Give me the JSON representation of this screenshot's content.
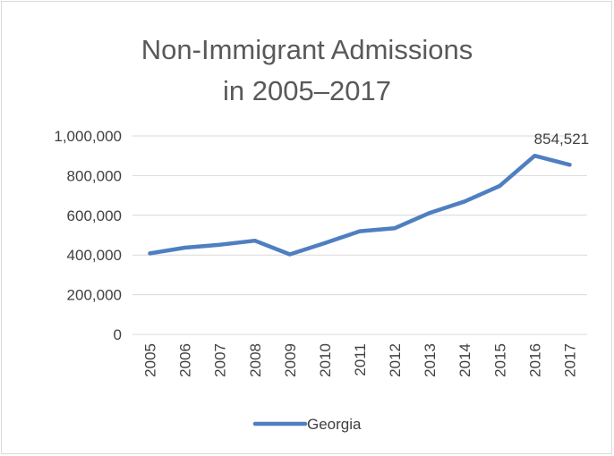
{
  "chart_data": {
    "type": "line",
    "title": "Non-Immigrant Admissions in 2005–2017",
    "title_lines": [
      "Non-Immigrant Admissions",
      "in 2005–2017"
    ],
    "xlabel": "",
    "ylabel": "",
    "categories": [
      "2005",
      "2006",
      "2007",
      "2008",
      "2009",
      "2010",
      "2011",
      "2012",
      "2013",
      "2014",
      "2015",
      "2016",
      "2017"
    ],
    "series": [
      {
        "name": "Georgia",
        "color": "#4f7fc0",
        "values": [
          408000,
          437000,
          452000,
          472000,
          403000,
          460000,
          520000,
          535000,
          612000,
          670000,
          748000,
          900000,
          854521
        ]
      }
    ],
    "ylim": [
      0,
      1000000
    ],
    "yticks": [
      0,
      200000,
      400000,
      600000,
      800000,
      1000000
    ],
    "ytick_labels": [
      "0",
      "200,000",
      "400,000",
      "600,000",
      "800,000",
      "1,000,000"
    ],
    "grid": true,
    "legend_position": "bottom",
    "annotations": [
      {
        "category": "2016",
        "text": "854,521"
      }
    ]
  }
}
